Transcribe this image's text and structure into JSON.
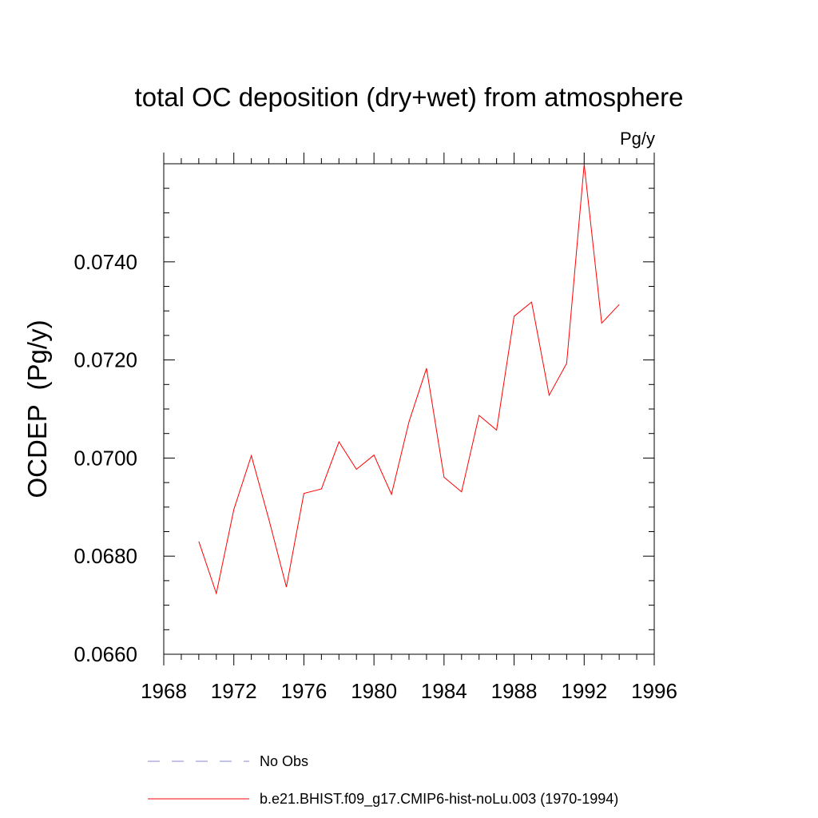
{
  "chart_data": {
    "type": "line",
    "title": "total OC deposition (dry+wet) from atmosphere",
    "units_label": "Pg/y",
    "ylabel": "OCDEP  (Pg/y)",
    "xlabel": "",
    "xlim": [
      1968,
      1996
    ],
    "ylim": [
      0.066,
      0.076
    ],
    "x_ticks": [
      1968,
      1972,
      1976,
      1980,
      1984,
      1988,
      1992,
      1996
    ],
    "x_tick_labels": [
      "1968",
      "1972",
      "1976",
      "1980",
      "1984",
      "1988",
      "1992",
      "1996"
    ],
    "y_ticks": [
      0.066,
      0.068,
      0.07,
      0.072,
      0.074
    ],
    "y_tick_labels": [
      "0.0660",
      "0.0680",
      "0.0700",
      "0.0720",
      "0.0740"
    ],
    "grid": false,
    "legend_placement": "bottom",
    "series": [
      {
        "name": "b.e21.BHIST.f09_g17.CMIP6-hist-noLu.003 (1970-1994)",
        "color": "#ff0000",
        "style": "solid",
        "x": [
          1970,
          1971,
          1972,
          1973,
          1974,
          1975,
          1976,
          1977,
          1978,
          1979,
          1980,
          1981,
          1982,
          1983,
          1984,
          1985,
          1986,
          1987,
          1988,
          1989,
          1990,
          1991,
          1992,
          1993,
          1994
        ],
        "values": [
          0.0683,
          0.06724,
          0.06895,
          0.07005,
          0.06875,
          0.06737,
          0.06928,
          0.06937,
          0.07033,
          0.06977,
          0.07006,
          0.06926,
          0.07074,
          0.07183,
          0.06961,
          0.06931,
          0.07087,
          0.07057,
          0.07289,
          0.07318,
          0.07128,
          0.07193,
          0.07599,
          0.07275,
          0.07313
        ]
      }
    ],
    "legend": [
      {
        "label": "No Obs",
        "color": "#8a8ad0",
        "style": "dashed"
      },
      {
        "label": "b.e21.BHIST.f09_g17.CMIP6-hist-noLu.003 (1970-1994)",
        "color": "#ff0000",
        "style": "solid"
      }
    ]
  }
}
